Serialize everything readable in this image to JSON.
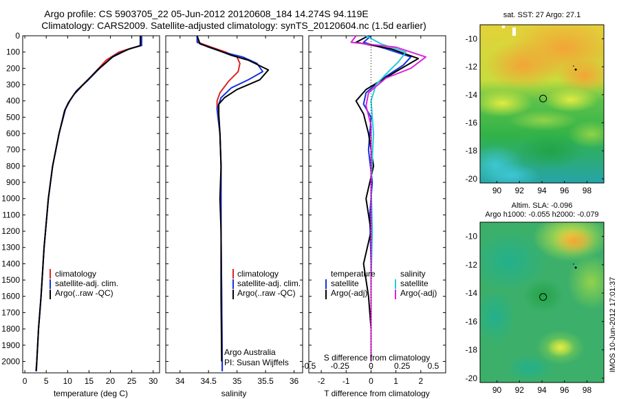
{
  "header": {
    "line1": "Argo profile: CS 5903705_22 05-Jun-2012 20120608_184 14.274S 94.119E",
    "line2": "Climatology: CARS2009. Satellite-adjusted climatology: synTS_20120604.nc (1.5d earlier)"
  },
  "colors": {
    "climatology": "#dd2222",
    "satellite": "#1133dd",
    "argo": "#000000",
    "cyan": "#22ccdd",
    "magenta": "#dd22dd"
  },
  "depth_ticks": [
    "0",
    "100",
    "200",
    "300",
    "400",
    "500",
    "600",
    "700",
    "800",
    "900",
    "1000",
    "1100",
    "1200",
    "1300",
    "1400",
    "1500",
    "1600",
    "1700",
    "1800",
    "1900",
    "2000"
  ],
  "side_label": "IMOS 10-Jun-2012 17:01:37",
  "chart_data": [
    {
      "type": "line",
      "id": "temperature",
      "xlabel": "temperature (deg C)",
      "ylabel": "",
      "xlim": [
        -0.5,
        31.5
      ],
      "ylim": [
        2070,
        0
      ],
      "xticks": [
        "0",
        "5",
        "10",
        "15",
        "20",
        "25",
        "30"
      ],
      "legend": [
        "climatology",
        "satellite-adj. clim.",
        "Argo(..raw -QC)"
      ],
      "series": [
        {
          "name": "climatology",
          "color": "#dd2222",
          "points": [
            [
              27.3,
              0
            ],
            [
              27.3,
              60
            ],
            [
              25,
              75
            ],
            [
              22,
              100
            ],
            [
              19,
              150
            ],
            [
              15.5,
              250
            ],
            [
              12,
              340
            ],
            [
              10.5,
              400
            ],
            [
              9.5,
              450
            ],
            [
              8,
              600
            ],
            [
              6.5,
              800
            ],
            [
              5.5,
              1000
            ],
            [
              4.5,
              1300
            ],
            [
              3.8,
              1600
            ],
            [
              3.2,
              1800
            ],
            [
              2.8,
              2000
            ],
            [
              2.6,
              2060
            ]
          ]
        },
        {
          "name": "satellite-adj. clim.",
          "color": "#1133dd",
          "points": [
            [
              27.3,
              0
            ],
            [
              27.3,
              60
            ],
            [
              24.5,
              80
            ],
            [
              21,
              120
            ],
            [
              17.5,
              200
            ],
            [
              14.5,
              280
            ],
            [
              12,
              340
            ],
            [
              10.5,
              400
            ],
            [
              9.5,
              450
            ],
            [
              8,
              600
            ],
            [
              6.5,
              800
            ],
            [
              5.5,
              1000
            ],
            [
              4.5,
              1300
            ],
            [
              3.8,
              1600
            ],
            [
              3.2,
              1800
            ],
            [
              2.8,
              2000
            ],
            [
              2.6,
              2060
            ]
          ]
        },
        {
          "name": "Argo(..raw -QC)",
          "color": "#000000",
          "points": [
            [
              27,
              0
            ],
            [
              27,
              60
            ],
            [
              24,
              85
            ],
            [
              20.5,
              130
            ],
            [
              17,
              210
            ],
            [
              14,
              290
            ],
            [
              11.5,
              360
            ],
            [
              10.2,
              410
            ],
            [
              9.3,
              460
            ],
            [
              8,
              600
            ],
            [
              6.5,
              800
            ],
            [
              5.5,
              1000
            ],
            [
              4.5,
              1300
            ],
            [
              3.8,
              1600
            ],
            [
              3.2,
              1800
            ],
            [
              2.8,
              2000
            ],
            [
              2.7,
              2060
            ]
          ]
        }
      ]
    },
    {
      "type": "line",
      "id": "salinity",
      "xlabel": "salinity",
      "ylabel": "",
      "xlim": [
        33.75,
        36.15
      ],
      "xticks": [
        "34",
        "34.5",
        "35",
        "35.5",
        "36"
      ],
      "legend": [
        "climatology",
        "satellite-adj. clim.",
        "Argo(..raw -QC)"
      ],
      "annotations": [
        "Argo Australia",
        "PI: Susan Wijffels"
      ],
      "series": [
        {
          "name": "climatology",
          "color": "#dd2222",
          "points": [
            [
              34.3,
              0
            ],
            [
              34.32,
              40
            ],
            [
              34.55,
              70
            ],
            [
              34.8,
              100
            ],
            [
              35.0,
              130
            ],
            [
              35.05,
              170
            ],
            [
              35.02,
              220
            ],
            [
              34.85,
              280
            ],
            [
              34.7,
              350
            ],
            [
              34.65,
              400
            ],
            [
              34.65,
              450
            ],
            [
              34.7,
              600
            ],
            [
              34.72,
              800
            ],
            [
              34.72,
              1200
            ],
            [
              34.73,
              1600
            ],
            [
              34.74,
              2000
            ],
            [
              34.74,
              2060
            ]
          ]
        },
        {
          "name": "satellite-adj. clim.",
          "color": "#1133dd",
          "points": [
            [
              34.3,
              0
            ],
            [
              34.3,
              40
            ],
            [
              34.5,
              70
            ],
            [
              34.75,
              100
            ],
            [
              35.1,
              130
            ],
            [
              35.35,
              170
            ],
            [
              35.45,
              220
            ],
            [
              35.2,
              270
            ],
            [
              34.9,
              320
            ],
            [
              34.72,
              380
            ],
            [
              34.65,
              450
            ],
            [
              34.7,
              600
            ],
            [
              34.72,
              800
            ],
            [
              34.72,
              1200
            ],
            [
              34.73,
              1600
            ],
            [
              34.74,
              2000
            ],
            [
              34.74,
              2060
            ]
          ]
        },
        {
          "name": "Argo(..raw -QC)",
          "color": "#000000",
          "points": [
            [
              34.3,
              0
            ],
            [
              34.35,
              50
            ],
            [
              34.6,
              80
            ],
            [
              34.9,
              120
            ],
            [
              35.2,
              150
            ],
            [
              35.55,
              210
            ],
            [
              35.4,
              270
            ],
            [
              35.0,
              330
            ],
            [
              34.78,
              380
            ],
            [
              34.68,
              420
            ],
            [
              34.68,
              480
            ],
            [
              34.7,
              600
            ],
            [
              34.72,
              800
            ],
            [
              34.7,
              1000
            ],
            [
              34.72,
              1200
            ],
            [
              34.72,
              1600
            ],
            [
              34.73,
              2000
            ]
          ]
        }
      ]
    },
    {
      "type": "line",
      "id": "difference",
      "xlabel": "T difference from climatology",
      "ylabel": "",
      "xlim": [
        -2.5,
        3.0
      ],
      "xticks": [
        "-2",
        "-1",
        "0",
        "1",
        "2"
      ],
      "top_label": "S difference from climatology",
      "top_ticks": [
        "-0.5",
        "-0.25",
        "0",
        "0.25",
        "0.5"
      ],
      "legend_left_title": "temperature",
      "legend_right_title": "salinity",
      "legend": [
        "satellite",
        "Argo(-adj)",
        "satellite",
        "Argo(-adj)"
      ],
      "series": [
        {
          "name": "T satellite",
          "color": "#1133dd",
          "points": [
            [
              0,
              0
            ],
            [
              -0.3,
              40
            ],
            [
              0.6,
              80
            ],
            [
              1.6,
              130
            ],
            [
              1.3,
              180
            ],
            [
              0.5,
              260
            ],
            [
              -0.2,
              350
            ],
            [
              -0.3,
              420
            ],
            [
              0,
              500
            ],
            [
              -0.1,
              700
            ],
            [
              0.05,
              900
            ],
            [
              -0.05,
              1100
            ],
            [
              0,
              1400
            ],
            [
              0,
              1700
            ],
            [
              0,
              2000
            ]
          ]
        },
        {
          "name": "T Argo(-adj)",
          "color": "#000000",
          "points": [
            [
              -0.1,
              0
            ],
            [
              -0.6,
              40
            ],
            [
              0.8,
              80
            ],
            [
              1.9,
              140
            ],
            [
              1.0,
              220
            ],
            [
              -0.2,
              330
            ],
            [
              -0.6,
              400
            ],
            [
              -0.3,
              480
            ],
            [
              -0.1,
              600
            ],
            [
              0.1,
              800
            ],
            [
              -0.2,
              1000
            ],
            [
              0,
              1200
            ],
            [
              -0.3,
              1400
            ],
            [
              -0.1,
              1600
            ],
            [
              0,
              1800
            ],
            [
              0,
              2000
            ]
          ]
        },
        {
          "name": "S satellite",
          "color": "#22ccdd",
          "points": [
            [
              -0.2,
              0
            ],
            [
              0.4,
              50
            ],
            [
              1.4,
              100
            ],
            [
              1.1,
              160
            ],
            [
              0.7,
              220
            ],
            [
              0.2,
              300
            ],
            [
              0,
              400
            ],
            [
              0.1,
              600
            ],
            [
              0,
              900
            ],
            [
              0.05,
              1200
            ],
            [
              0,
              1500
            ],
            [
              0,
              1800
            ],
            [
              0,
              2000
            ]
          ]
        },
        {
          "name": "S Argo(-adj)",
          "color": "#dd22dd",
          "points": [
            [
              -0.6,
              0
            ],
            [
              -0.8,
              40
            ],
            [
              1.0,
              70
            ],
            [
              2.2,
              130
            ],
            [
              1.6,
              200
            ],
            [
              0.6,
              260
            ],
            [
              -0.1,
              350
            ],
            [
              -0.2,
              430
            ],
            [
              0,
              550
            ],
            [
              0,
              800
            ],
            [
              0,
              1200
            ],
            [
              0,
              1600
            ],
            [
              0,
              2000
            ]
          ]
        }
      ]
    }
  ],
  "maps": [
    {
      "title": "sat. SST: 27 Argo: 27.1",
      "xticks": [
        "90",
        "92",
        "94",
        "96",
        "98"
      ],
      "yticks": [
        "-10",
        "-12",
        "-14",
        "-16",
        "-18",
        "-20"
      ],
      "xlim": [
        88.5,
        99.5
      ],
      "ylim": [
        -9,
        -20.3
      ],
      "marker": {
        "lon": 94.1,
        "lat": -14.27
      }
    },
    {
      "title": "Altim. SLA: -0.096",
      "subtitle": "Argo h1000: -0.055 h2000: -0.079",
      "xticks": [
        "90",
        "92",
        "94",
        "96",
        "98"
      ],
      "yticks": [
        "-10",
        "-12",
        "-14",
        "-16",
        "-18",
        "-20"
      ],
      "xlim": [
        88.5,
        99.5
      ],
      "ylim": [
        -9,
        -20.3
      ],
      "marker": {
        "lon": 94.1,
        "lat": -14.27
      }
    }
  ]
}
